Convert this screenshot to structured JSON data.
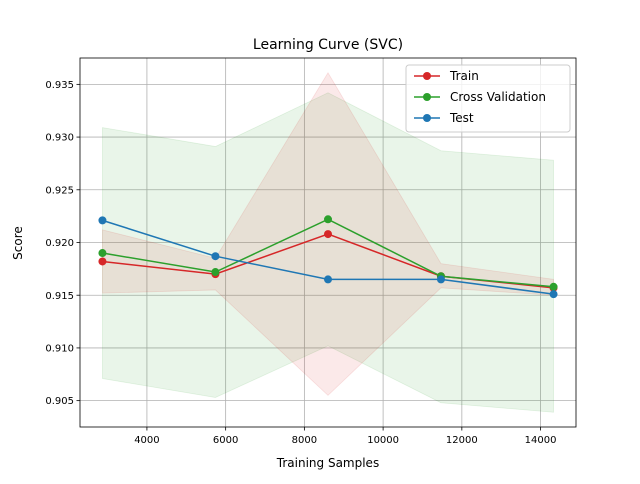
{
  "chart_data": {
    "type": "line",
    "title": "Learning Curve (SVC)",
    "xlabel": "Training Samples",
    "ylabel": "Score",
    "xlim": [
      2300,
      14900
    ],
    "ylim": [
      0.9025,
      0.9375
    ],
    "xticks": [
      4000,
      6000,
      8000,
      10000,
      12000,
      14000
    ],
    "xtick_labels": [
      "4000",
      "6000",
      "8000",
      "10000",
      "12000",
      "14000"
    ],
    "yticks": [
      0.905,
      0.91,
      0.915,
      0.92,
      0.925,
      0.93,
      0.935
    ],
    "ytick_labels": [
      "0.905",
      "0.910",
      "0.915",
      "0.920",
      "0.925",
      "0.930",
      "0.935"
    ],
    "grid": true,
    "legend_position": "top-right",
    "x": [
      2870,
      5740,
      8600,
      11470,
      14330
    ],
    "series": [
      {
        "name": "Train",
        "color": "#d62728",
        "values": [
          0.9182,
          0.917,
          0.9208,
          0.9168,
          0.9157
        ],
        "band_lower": [
          0.9152,
          0.9155,
          0.9055,
          0.9157,
          0.915
        ],
        "band_upper": [
          0.9212,
          0.9185,
          0.9361,
          0.918,
          0.9165
        ]
      },
      {
        "name": "Cross Validation",
        "color": "#2ca02c",
        "values": [
          0.919,
          0.9172,
          0.9222,
          0.9168,
          0.9158
        ],
        "band_lower": [
          0.9071,
          0.9053,
          0.9102,
          0.9048,
          0.9039
        ],
        "band_upper": [
          0.9309,
          0.9291,
          0.9342,
          0.9287,
          0.9278
        ]
      },
      {
        "name": "Test",
        "color": "#1f77b4",
        "values": [
          0.9221,
          0.9187,
          0.9165,
          0.9165,
          0.9151
        ]
      }
    ]
  }
}
